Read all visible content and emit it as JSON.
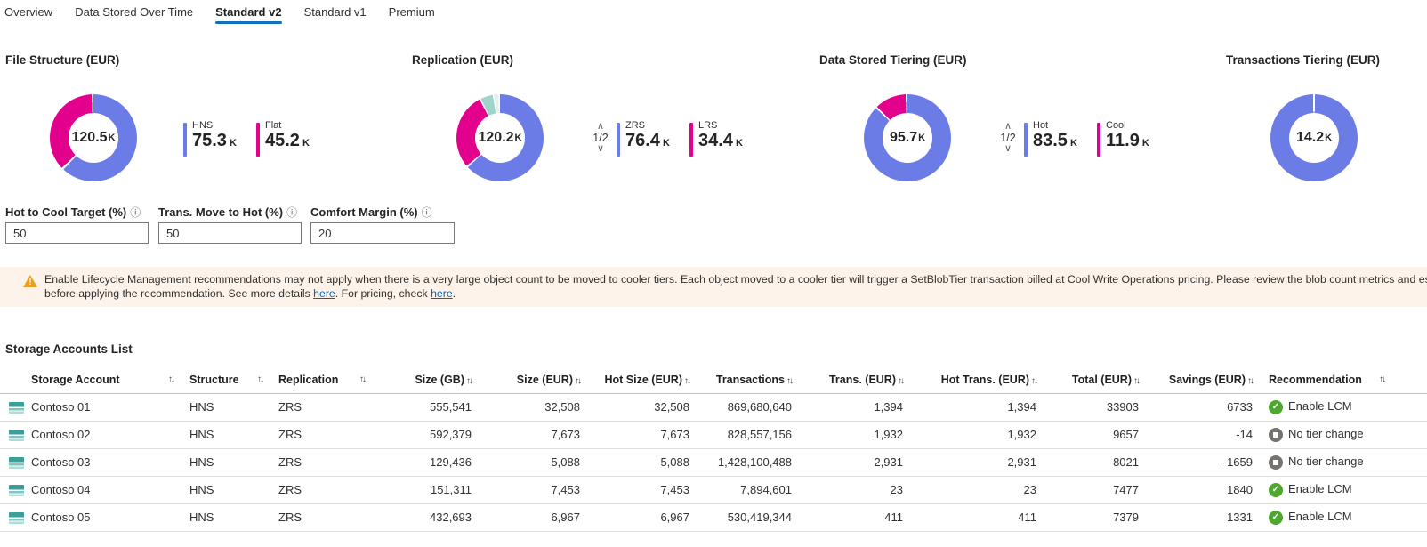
{
  "tabs": [
    {
      "label": "Overview",
      "active": false
    },
    {
      "label": "Data Stored Over Time",
      "active": false
    },
    {
      "label": "Standard v2",
      "active": true
    },
    {
      "label": "Standard v1",
      "active": false
    },
    {
      "label": "Premium",
      "active": false
    }
  ],
  "colors": {
    "accent": "#1170BD",
    "donut_blue": "#6C7CE6",
    "donut_pink": "#E3008C",
    "donut_teal": "#9FD3CB",
    "donut_pale": "#E4F1EB",
    "enable_green": "#4EA72E",
    "neutral_gray": "#757370",
    "banner_bg": "#FDF3EA",
    "warning_orange": "#EE9E1C"
  },
  "chart_data": [
    {
      "type": "pie",
      "title": "File Structure (EUR)",
      "center_value": "120.5",
      "center_unit": "K",
      "pager": null,
      "legend": [
        {
          "label": "HNS",
          "value": "75.3",
          "unit": "K",
          "color": "#6C7CE6"
        },
        {
          "label": "Flat",
          "value": "45.2",
          "unit": "K",
          "color": "#E3008C"
        }
      ],
      "stops": [
        [
          "#6C7CE6",
          0,
          62.1
        ],
        [
          "#FFFFFF",
          62.1,
          62.9
        ],
        [
          "#E3008C",
          62.9,
          99.3
        ],
        [
          "#FFFFFF",
          99.3,
          100
        ]
      ]
    },
    {
      "type": "pie",
      "title": "Replication (EUR)",
      "center_value": "120.2",
      "center_unit": "K",
      "pager": "1/2",
      "legend": [
        {
          "label": "ZRS",
          "value": "76.4",
          "unit": "K",
          "color": "#6C7CE6"
        },
        {
          "label": "LRS",
          "value": "34.4",
          "unit": "K",
          "color": "#E3008C"
        }
      ],
      "stops": [
        [
          "#6C7CE6",
          0,
          63.2
        ],
        [
          "#FFFFFF",
          63.2,
          63.9
        ],
        [
          "#E3008C",
          63.9,
          92.2
        ],
        [
          "#FFFFFF",
          92.2,
          92.8
        ],
        [
          "#9FD3CB",
          92.8,
          97.3
        ],
        [
          "#FFFFFF",
          97.3,
          97.8
        ],
        [
          "#E4F1EB",
          97.8,
          99.4
        ],
        [
          "#FFFFFF",
          99.4,
          100
        ]
      ]
    },
    {
      "type": "pie",
      "title": "Data Stored Tiering (EUR)",
      "center_value": "95.7",
      "center_unit": "K",
      "pager": "1/2",
      "legend": [
        {
          "label": "Hot",
          "value": "83.5",
          "unit": "K",
          "color": "#6C7CE6"
        },
        {
          "label": "Cool",
          "value": "11.9",
          "unit": "K",
          "color": "#E3008C"
        }
      ],
      "stops": [
        [
          "#6C7CE6",
          0,
          87.0
        ],
        [
          "#FFFFFF",
          87.0,
          87.7
        ],
        [
          "#E3008C",
          87.7,
          99.3
        ],
        [
          "#FFFFFF",
          99.3,
          100
        ]
      ]
    },
    {
      "type": "pie",
      "title": "Transactions Tiering (EUR)",
      "center_value": "14.2",
      "center_unit": "K",
      "pager": null,
      "legend": [],
      "stops": [
        [
          "#FFFFFF",
          0,
          0.4
        ],
        [
          "#6C7CE6",
          0.4,
          99.6
        ],
        [
          "#FFFFFF",
          99.6,
          100
        ]
      ]
    }
  ],
  "inputs": [
    {
      "label": "Hot to Cool Target (%)",
      "value": "50"
    },
    {
      "label": "Trans. Move to Hot (%)",
      "value": "50"
    },
    {
      "label": "Comfort Margin (%)",
      "value": "20"
    }
  ],
  "banner": {
    "line1": "Enable Lifecycle Management recommendations may not apply when there is a very large object count to be moved to cooler tiers. Each object moved to a cooler tier will trigger a SetBlobTier transaction billed at Cool Write Operations pricing. Please review the blob count metrics and estimate the",
    "line2_text1": "before applying the recommendation. See more details ",
    "link1": "here",
    "line2_text2": ". For pricing, check ",
    "link2": "here",
    "line2_text3": "."
  },
  "table": {
    "title": "Storage Accounts List",
    "sort_icon": "↑↓",
    "columns": [
      "Storage Account",
      "Structure",
      "Replication",
      "Size (GB)",
      "Size (EUR)",
      "Hot Size (EUR)",
      "Transactions",
      "Trans. (EUR)",
      "Hot Trans. (EUR)",
      "Total (EUR)",
      "Savings (EUR)",
      "Recommendation"
    ],
    "rows": [
      {
        "account": "Contoso 01",
        "structure": "HNS",
        "replication": "ZRS",
        "size_gb": "555,541",
        "size_eur": "32,508",
        "hot_size_eur": "32,508",
        "transactions": "869,680,640",
        "trans_eur": "1,394",
        "hot_trans_eur": "1,394",
        "total_eur": "33903",
        "savings_eur": "6733",
        "recommendation": {
          "label": "Enable LCM",
          "status": "enable"
        }
      },
      {
        "account": "Contoso 02",
        "structure": "HNS",
        "replication": "ZRS",
        "size_gb": "592,379",
        "size_eur": "7,673",
        "hot_size_eur": "7,673",
        "transactions": "828,557,156",
        "trans_eur": "1,932",
        "hot_trans_eur": "1,932",
        "total_eur": "9657",
        "savings_eur": "-14",
        "recommendation": {
          "label": "No tier change",
          "status": "none"
        }
      },
      {
        "account": "Contoso 03",
        "structure": "HNS",
        "replication": "ZRS",
        "size_gb": "129,436",
        "size_eur": "5,088",
        "hot_size_eur": "5,088",
        "transactions": "1,428,100,488",
        "trans_eur": "2,931",
        "hot_trans_eur": "2,931",
        "total_eur": "8021",
        "savings_eur": "-1659",
        "recommendation": {
          "label": "No tier change",
          "status": "none"
        }
      },
      {
        "account": "Contoso 04",
        "structure": "HNS",
        "replication": "ZRS",
        "size_gb": "151,311",
        "size_eur": "7,453",
        "hot_size_eur": "7,453",
        "transactions": "7,894,601",
        "trans_eur": "23",
        "hot_trans_eur": "23",
        "total_eur": "7477",
        "savings_eur": "1840",
        "recommendation": {
          "label": "Enable LCM",
          "status": "enable"
        }
      },
      {
        "account": "Contoso 05",
        "structure": "HNS",
        "replication": "ZRS",
        "size_gb": "432,693",
        "size_eur": "6,967",
        "hot_size_eur": "6,967",
        "transactions": "530,419,344",
        "trans_eur": "411",
        "hot_trans_eur": "411",
        "total_eur": "7379",
        "savings_eur": "1331",
        "recommendation": {
          "label": "Enable LCM",
          "status": "enable"
        }
      }
    ]
  }
}
